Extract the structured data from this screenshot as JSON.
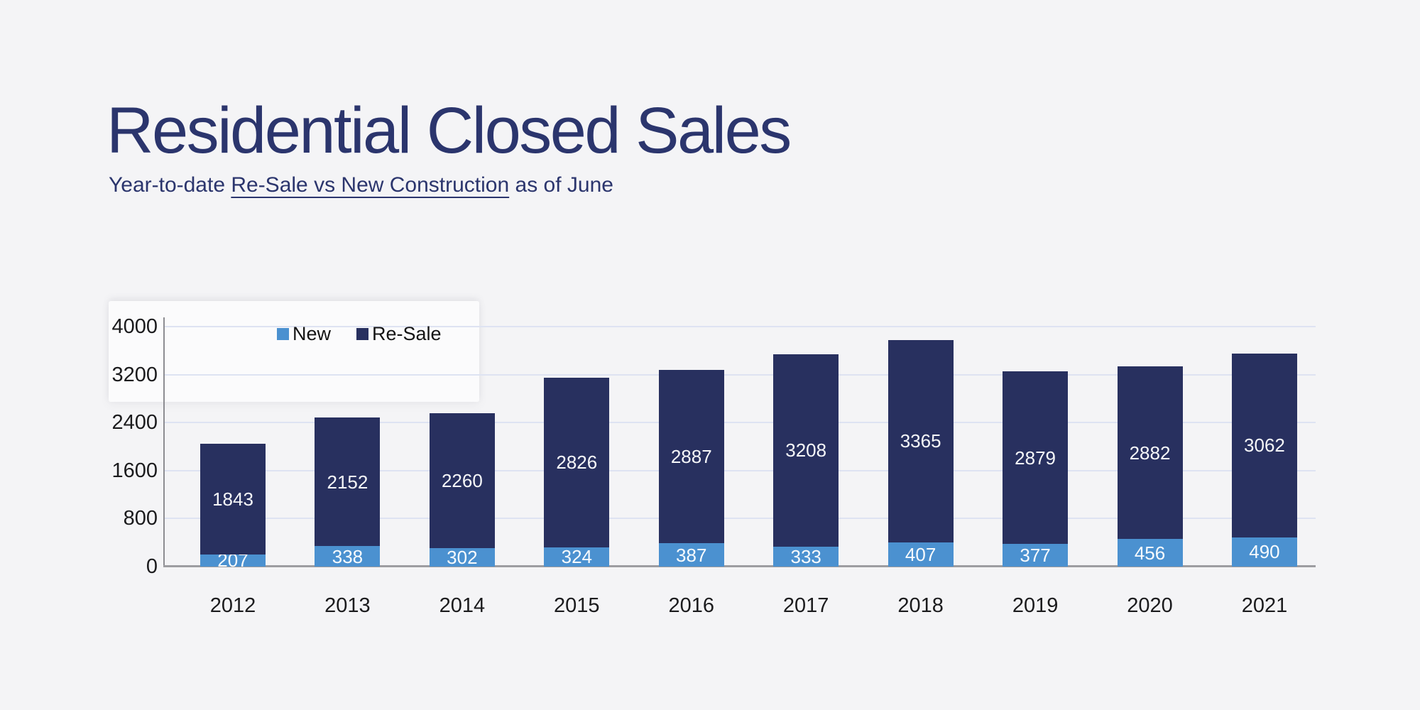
{
  "header": {
    "title": "Residential Closed Sales",
    "subtitle": {
      "prefix": "Year-to-date ",
      "underlined": "Re-Sale vs New Construction",
      "suffix": " as of June"
    }
  },
  "chart_data": {
    "type": "bar",
    "stacked": true,
    "title": "Residential Closed Sales",
    "subtitle": "Year-to-date Re-Sale vs New Construction as of June",
    "categories": [
      "2012",
      "2013",
      "2014",
      "2015",
      "2016",
      "2017",
      "2018",
      "2019",
      "2020",
      "2021"
    ],
    "series": [
      {
        "name": "New",
        "color": "#4b91d0",
        "values": [
          207,
          338,
          302,
          324,
          387,
          333,
          407,
          377,
          456,
          490
        ]
      },
      {
        "name": "Re-Sale",
        "color": "#28305f",
        "values": [
          1843,
          2152,
          2260,
          2826,
          2887,
          3208,
          3365,
          2879,
          2882,
          3062
        ]
      }
    ],
    "yticks": [
      0,
      800,
      1600,
      2400,
      3200,
      4000
    ],
    "ylim": [
      0,
      4150
    ],
    "xlabel": "",
    "ylabel": "",
    "grid": "horizontal",
    "legend": {
      "position": "top-left-inside",
      "entries": [
        "New",
        "Re-Sale"
      ]
    },
    "value_labels": "white numbers centered in each stacked segment"
  },
  "colors": {
    "background": "#f4f4f6",
    "title_text": "#2b356d",
    "axis_text": "#1b1b1d",
    "legend_text": "#141414",
    "gridline": "#dee3f2",
    "axis_line": "#8d8d92",
    "bar_label": "#ffffff",
    "new_series": "#4b91d0",
    "resale_series": "#28305f"
  }
}
